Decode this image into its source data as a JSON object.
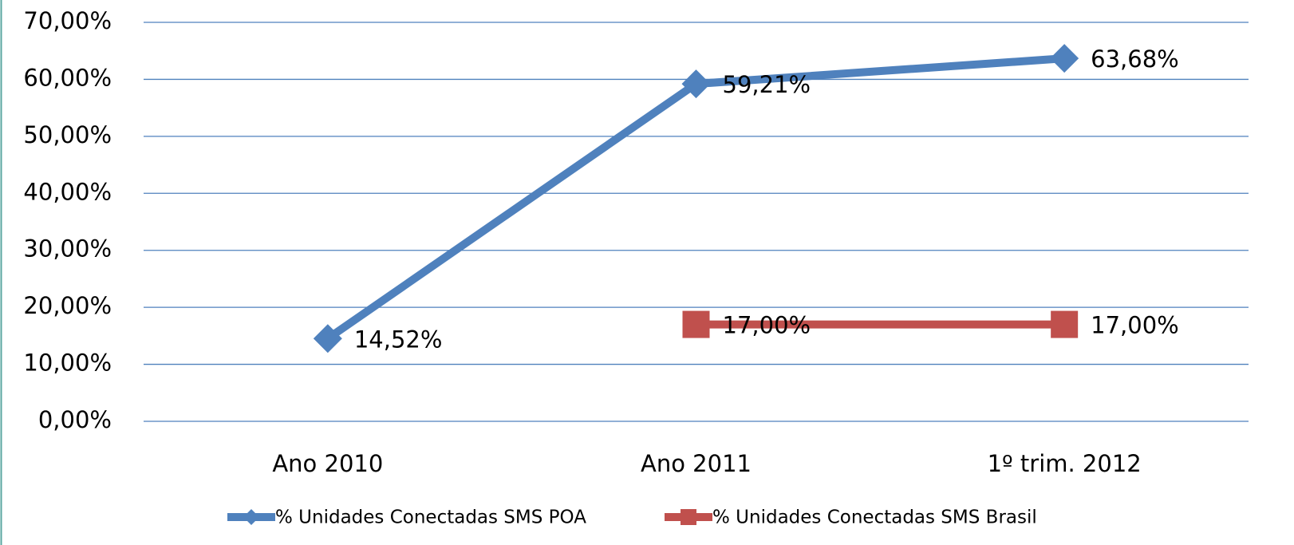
{
  "chart_data": {
    "type": "line",
    "categories": [
      "Ano 2010",
      "Ano 2011",
      "1º trim. 2012"
    ],
    "series": [
      {
        "name": "% Unidades Conectadas SMS POA",
        "color": "#4f81bd",
        "marker": "diamond",
        "values": [
          14.52,
          59.21,
          63.68
        ],
        "value_labels": [
          "14,52%",
          "59,21%",
          "63,68%"
        ]
      },
      {
        "name": "% Unidades Conectadas SMS Brasil",
        "color": "#c0504d",
        "marker": "square",
        "values": [
          null,
          17,
          17
        ],
        "value_labels": [
          null,
          "17,00%",
          "17,00%"
        ]
      }
    ],
    "ylim": [
      0,
      70
    ],
    "yticks": [
      {
        "value": 0,
        "label": "0,00%"
      },
      {
        "value": 10,
        "label": "10,00%"
      },
      {
        "value": 20,
        "label": "20,00%"
      },
      {
        "value": 30,
        "label": "30,00%"
      },
      {
        "value": 40,
        "label": "40,00%"
      },
      {
        "value": 50,
        "label": "50,00%"
      },
      {
        "value": 60,
        "label": "60,00%"
      },
      {
        "value": 70,
        "label": "70,00%"
      }
    ],
    "grid": true,
    "legend": "bottom"
  }
}
